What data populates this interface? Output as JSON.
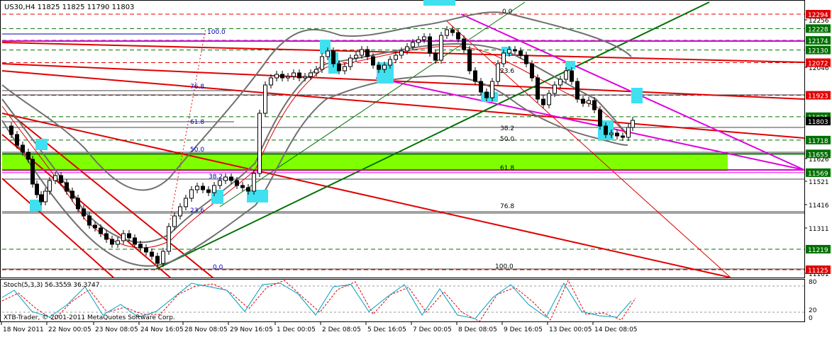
{
  "header": {
    "symbol_ohlc": "US30,H4  11825 11825 11790 11803",
    "indicator": "Stoch(5,3,3) 56.3559 36.3747",
    "copyright": "XTB-Trader, © 2001-2011 MetaQuotes Software Corp."
  },
  "price_axis": {
    "ticks": [
      "12256",
      "12046",
      "11626",
      "11521",
      "11416",
      "11311",
      "11101"
    ],
    "levels": [
      {
        "label": "12294",
        "value": 12294,
        "style": "red-box"
      },
      {
        "label": "12228",
        "value": 12228,
        "style": "green-box"
      },
      {
        "label": "12174",
        "value": 12174,
        "style": "green-box"
      },
      {
        "label": "12130",
        "value": 12130,
        "style": "green-box"
      },
      {
        "label": "12072",
        "value": 12072,
        "style": "red-box"
      },
      {
        "label": "11923",
        "value": 11923,
        "style": "red-box"
      },
      {
        "label": "11825",
        "value": 11825,
        "style": "green-box"
      },
      {
        "label": "11803",
        "value": 11803,
        "style": "black-box"
      },
      {
        "label": "11718",
        "value": 11718,
        "style": "green-box"
      },
      {
        "label": "11655",
        "value": 11655,
        "style": "green-box"
      },
      {
        "label": "11569",
        "value": 11569,
        "style": "green-box"
      },
      {
        "label": "11219",
        "value": 11219,
        "style": "green-box"
      },
      {
        "label": "11125",
        "value": 11125,
        "style": "red-box"
      }
    ]
  },
  "fib_left": [
    "100.0",
    "76.8",
    "61.8",
    "50.0",
    "38.2",
    "23.6",
    "0.0"
  ],
  "fib_right": [
    "0.0",
    "23.6",
    "38.2",
    "50.0",
    "61.8",
    "76.8",
    "100.0"
  ],
  "stoch_axis": [
    "80",
    "20",
    "0"
  ],
  "time_axis": [
    "18 Nov 2011",
    "22 Nov 00:05",
    "23 Nov 08:05",
    "24 Nov 16:05",
    "28 Nov 08:05",
    "29 Nov 16:05",
    "1 Dec 00:05",
    "2 Dec 08:05",
    "5 Dec 16:05",
    "7 Dec 00:05",
    "8 Dec 08:05",
    "9 Dec 16:05",
    "13 Dec 00:05",
    "14 Dec 08:05"
  ],
  "colors": {
    "red": "#e00000",
    "green": "#007000",
    "magenta": "#e000e0",
    "zone": "#80ff00",
    "cyan": "#40e0f0",
    "band": "#707070",
    "blue": "#0000c0"
  },
  "chart_data": {
    "type": "candlestick",
    "symbol": "US30",
    "timeframe": "H4",
    "x": [
      "18 Nov 2011",
      "22 Nov 00:05",
      "23 Nov 08:05",
      "24 Nov 16:05",
      "28 Nov 08:05",
      "29 Nov 16:05",
      "1 Dec 00:05",
      "2 Dec 08:05",
      "5 Dec 16:05",
      "7 Dec 00:05",
      "8 Dec 08:05",
      "9 Dec 16:05",
      "13 Dec 00:05",
      "14 Dec 08:05"
    ],
    "close": [
      11790,
      11560,
      11330,
      11150,
      11450,
      11540,
      12000,
      12040,
      12090,
      12200,
      12080,
      12110,
      11900,
      11800
    ],
    "ylim": [
      11080,
      12320
    ],
    "last_ohlc": {
      "open": 11825,
      "high": 11825,
      "low": 11790,
      "close": 11803
    },
    "support_resistance": [
      12294,
      12228,
      12174,
      12130,
      12072,
      11923,
      11825,
      11718,
      11655,
      11569,
      11219,
      11125
    ],
    "demand_zone": [
      11575,
      11640
    ],
    "stochastic": {
      "k": 56.3559,
      "d": 36.3747,
      "levels": [
        80,
        20
      ]
    }
  }
}
